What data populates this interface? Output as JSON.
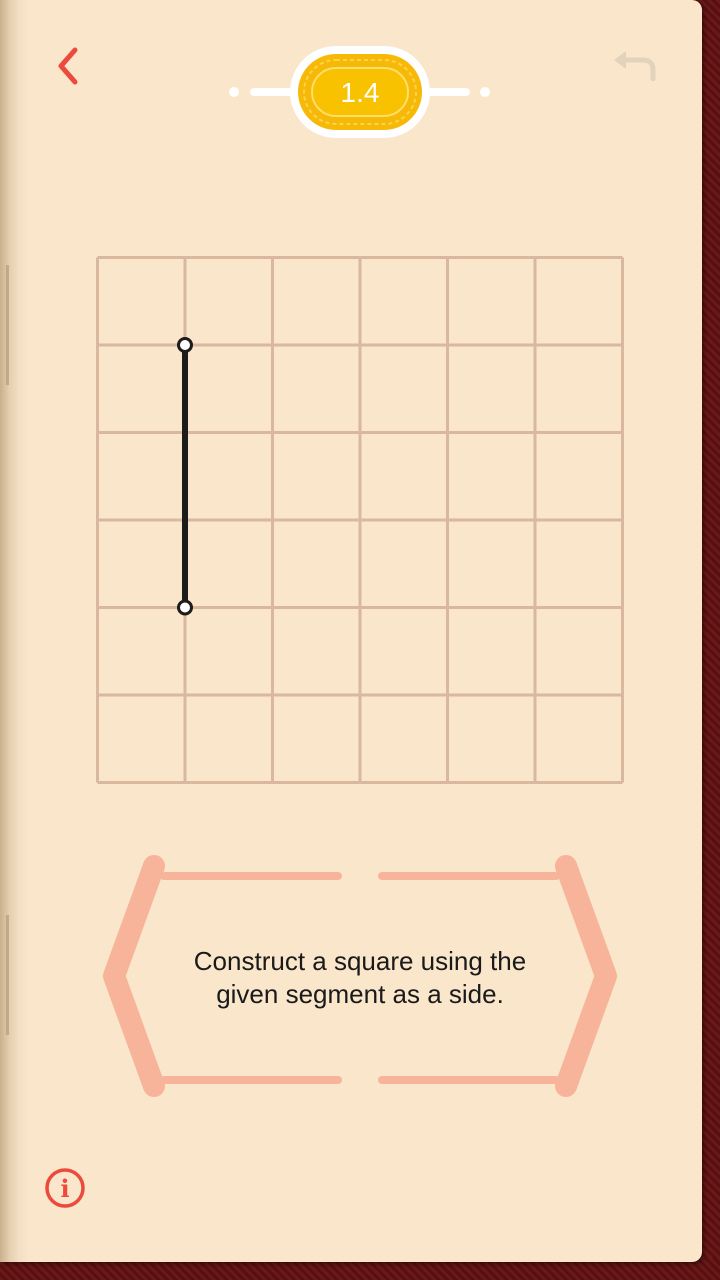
{
  "header": {
    "level_label": "1.4",
    "back_icon": "chevron-left-icon",
    "undo_icon": "undo-icon"
  },
  "puzzle": {
    "grid_columns": 6,
    "grid_rows": 6,
    "given_segment": {
      "start": [
        1,
        1
      ],
      "end": [
        1,
        4
      ]
    }
  },
  "task": {
    "line1": "Construct a square using the",
    "line2": "given segment as a side."
  },
  "footer": {
    "info_icon": "info-icon"
  },
  "colors": {
    "accent_red": "#ec4a3c",
    "grid_line": "#d9b89e",
    "segment": "#1c1c1c",
    "badge_gold": "#f7b908",
    "banner_salmon": "#f7b49a",
    "page_bg": "#f9e6cb",
    "undo_disabled": "#e3d3bc"
  }
}
